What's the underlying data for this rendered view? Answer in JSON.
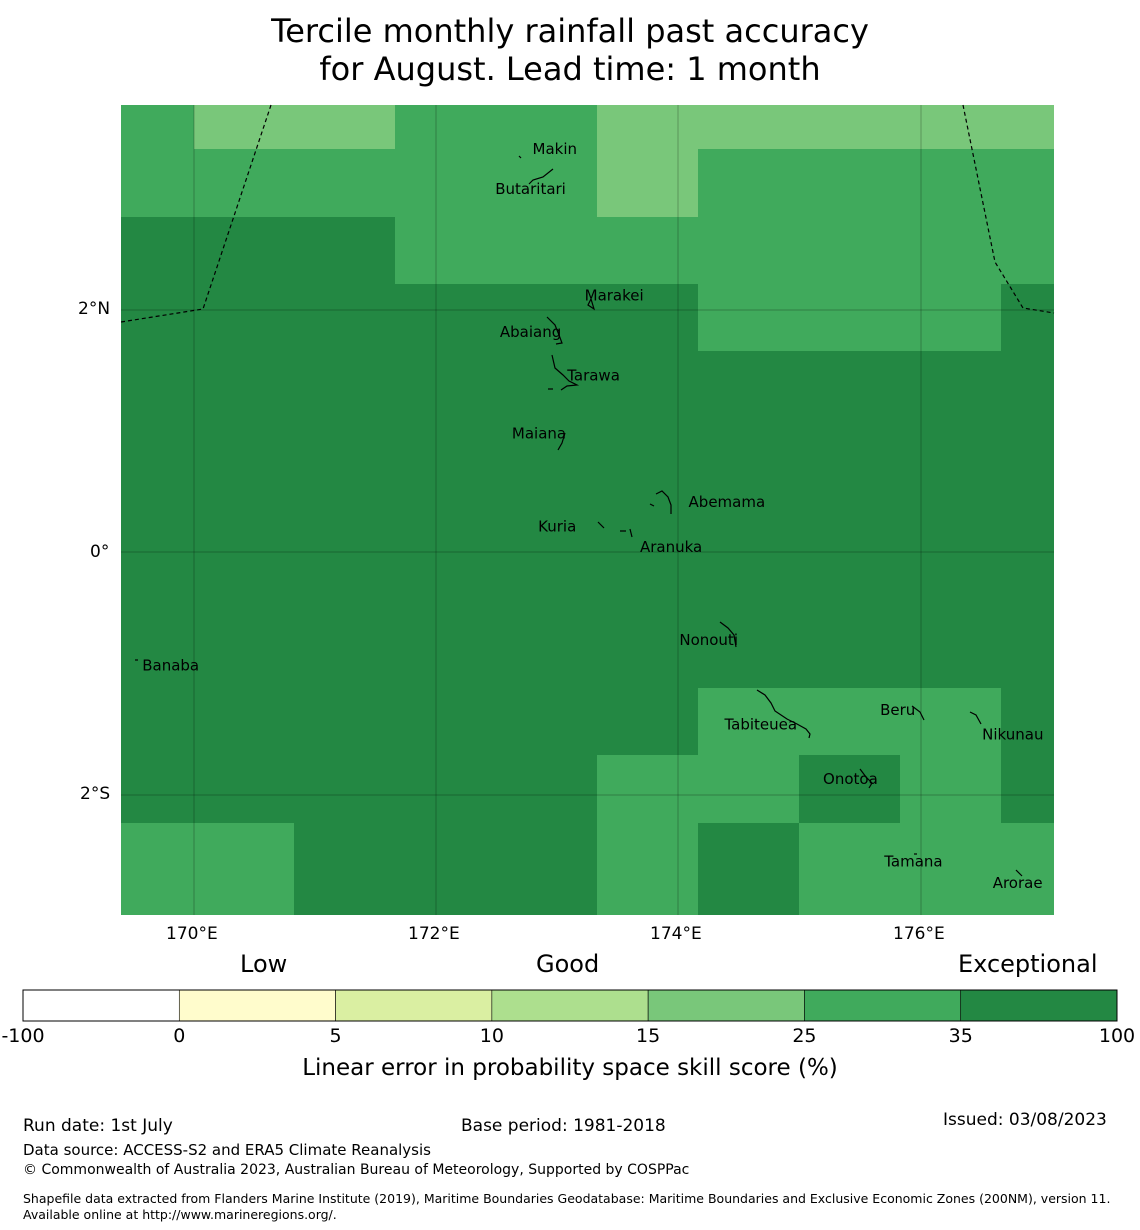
{
  "title_line1": "Tercile monthly rainfall past accuracy",
  "title_line2": "for August. Lead time: 1 month",
  "colors": {
    "c15_25": "#79c77a",
    "c25_35": "#40aa5c",
    "c35_100": "#238843",
    "borders": "#000000"
  },
  "map": {
    "lon_range": [
      169.4,
      177.1
    ],
    "lat_range": [
      -3.0,
      3.7
    ],
    "lon_ticks": [
      "170°E",
      "172°E",
      "174°E",
      "176°E"
    ],
    "lat_ticks": [
      "2°N",
      "0°",
      "2°S"
    ],
    "places": [
      {
        "name": "Makin",
        "lon": 172.98,
        "lat": 3.33
      },
      {
        "name": "Butaritari",
        "lon": 172.78,
        "lat": 3.0
      },
      {
        "name": "Marakei",
        "lon": 173.47,
        "lat": 2.12
      },
      {
        "name": "Abaiang",
        "lon": 172.78,
        "lat": 1.82
      },
      {
        "name": "Tarawa",
        "lon": 173.3,
        "lat": 1.46
      },
      {
        "name": "Maiana",
        "lon": 172.85,
        "lat": 0.98
      },
      {
        "name": "Abemama",
        "lon": 174.4,
        "lat": 0.41
      },
      {
        "name": "Kuria",
        "lon": 173.0,
        "lat": 0.21
      },
      {
        "name": "Aranuka",
        "lon": 173.94,
        "lat": 0.04
      },
      {
        "name": "Nonouti",
        "lon": 174.25,
        "lat": -0.73
      },
      {
        "name": "Banaba",
        "lon": 169.81,
        "lat": -0.94
      },
      {
        "name": "Tabiteuea",
        "lon": 174.68,
        "lat": -1.43
      },
      {
        "name": "Beru",
        "lon": 175.81,
        "lat": -1.31
      },
      {
        "name": "Nikunau",
        "lon": 176.76,
        "lat": -1.51
      },
      {
        "name": "Onotoa",
        "lon": 175.42,
        "lat": -1.88
      },
      {
        "name": "Tamana",
        "lon": 175.94,
        "lat": -2.56
      },
      {
        "name": "Arorae",
        "lon": 176.8,
        "lat": -2.74
      }
    ]
  },
  "colorbar": {
    "categories": [
      "Low",
      "Good",
      "Exceptional"
    ],
    "bounds": [
      "-100",
      "0",
      "5",
      "10",
      "15",
      "25",
      "35",
      "100"
    ],
    "colors": [
      "#ffffff",
      "#fffccc",
      "#daefa2",
      "#addf8e",
      "#79c77a",
      "#40aa5c",
      "#238843"
    ],
    "label": "Linear error in probability space skill score (%)"
  },
  "footer": {
    "run_date": "Run date: 1st July",
    "base_period": "Base period: 1981-2018",
    "issued": "Issued: 03/08/2023",
    "data_source": "Data source: ACCESS-S2 and ERA5 Climate Reanalysis",
    "copyright": "© Commonwealth of Australia 2023, Australian Bureau of Meteorology, Supported by COSPPac",
    "shapefile": "Shapefile data extracted from Flanders Marine Institute (2019), Maritime Boundaries Geodatabase: Maritime Boundaries and Exclusive Economic Zones (200NM), version 11. Available online at http://www.marineregions.org/."
  }
}
